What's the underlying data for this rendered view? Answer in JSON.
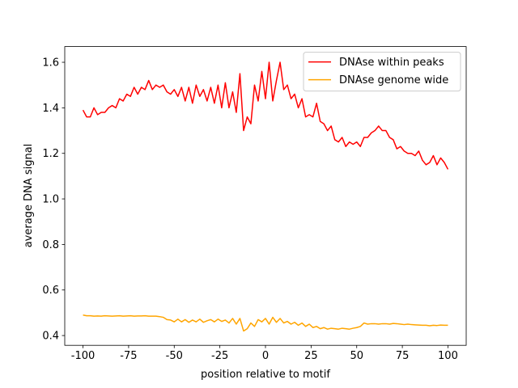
{
  "chart_data": {
    "type": "line",
    "xlabel": "position relative to motif",
    "ylabel": "average DNA signal",
    "x": [
      -100,
      -98,
      -96,
      -94,
      -92,
      -90,
      -88,
      -86,
      -84,
      -82,
      -80,
      -78,
      -76,
      -74,
      -72,
      -70,
      -68,
      -66,
      -64,
      -62,
      -60,
      -58,
      -56,
      -54,
      -52,
      -50,
      -48,
      -46,
      -44,
      -42,
      -40,
      -38,
      -36,
      -34,
      -32,
      -30,
      -28,
      -26,
      -24,
      -22,
      -20,
      -18,
      -16,
      -14,
      -12,
      -10,
      -8,
      -6,
      -4,
      -2,
      0,
      2,
      4,
      6,
      8,
      10,
      12,
      14,
      16,
      18,
      20,
      22,
      24,
      26,
      28,
      30,
      32,
      34,
      36,
      38,
      40,
      42,
      44,
      46,
      48,
      50,
      52,
      54,
      56,
      58,
      60,
      62,
      64,
      66,
      68,
      70,
      72,
      74,
      76,
      78,
      80,
      82,
      84,
      86,
      88,
      90,
      92,
      94,
      96,
      98,
      100
    ],
    "series": [
      {
        "name": "DNAse within peaks",
        "color": "#ff0000",
        "values": [
          1.39,
          1.36,
          1.36,
          1.4,
          1.37,
          1.38,
          1.38,
          1.4,
          1.41,
          1.4,
          1.44,
          1.43,
          1.46,
          1.45,
          1.49,
          1.46,
          1.49,
          1.48,
          1.52,
          1.48,
          1.5,
          1.49,
          1.5,
          1.47,
          1.46,
          1.48,
          1.45,
          1.49,
          1.43,
          1.49,
          1.42,
          1.5,
          1.45,
          1.48,
          1.43,
          1.49,
          1.42,
          1.5,
          1.4,
          1.51,
          1.4,
          1.47,
          1.38,
          1.55,
          1.3,
          1.36,
          1.33,
          1.5,
          1.43,
          1.56,
          1.44,
          1.6,
          1.43,
          1.52,
          1.6,
          1.48,
          1.5,
          1.44,
          1.46,
          1.4,
          1.44,
          1.36,
          1.37,
          1.36,
          1.42,
          1.34,
          1.33,
          1.3,
          1.32,
          1.26,
          1.25,
          1.27,
          1.23,
          1.25,
          1.24,
          1.25,
          1.23,
          1.27,
          1.27,
          1.29,
          1.3,
          1.32,
          1.3,
          1.3,
          1.27,
          1.26,
          1.22,
          1.23,
          1.21,
          1.2,
          1.2,
          1.19,
          1.21,
          1.17,
          1.15,
          1.16,
          1.19,
          1.15,
          1.18,
          1.16,
          1.13
        ]
      },
      {
        "name": "DNAse genome wide",
        "color": "#ffa500",
        "values": [
          0.49,
          0.487,
          0.487,
          0.485,
          0.486,
          0.485,
          0.487,
          0.486,
          0.485,
          0.486,
          0.487,
          0.485,
          0.486,
          0.487,
          0.485,
          0.486,
          0.486,
          0.487,
          0.485,
          0.485,
          0.485,
          0.483,
          0.48,
          0.47,
          0.468,
          0.46,
          0.472,
          0.46,
          0.47,
          0.458,
          0.468,
          0.46,
          0.472,
          0.458,
          0.465,
          0.47,
          0.46,
          0.472,
          0.462,
          0.468,
          0.455,
          0.475,
          0.45,
          0.475,
          0.42,
          0.43,
          0.455,
          0.44,
          0.47,
          0.46,
          0.475,
          0.45,
          0.48,
          0.458,
          0.475,
          0.455,
          0.462,
          0.45,
          0.458,
          0.445,
          0.455,
          0.44,
          0.45,
          0.435,
          0.44,
          0.43,
          0.435,
          0.428,
          0.432,
          0.43,
          0.428,
          0.432,
          0.43,
          0.428,
          0.432,
          0.435,
          0.44,
          0.455,
          0.45,
          0.452,
          0.452,
          0.45,
          0.452,
          0.452,
          0.45,
          0.453,
          0.452,
          0.45,
          0.448,
          0.45,
          0.448,
          0.447,
          0.446,
          0.445,
          0.445,
          0.443,
          0.445,
          0.444,
          0.446,
          0.445,
          0.445
        ]
      }
    ],
    "xlim": [
      -110,
      110
    ],
    "xticks": [
      -100,
      -75,
      -50,
      -25,
      0,
      25,
      50,
      75,
      100
    ],
    "ylim": [
      0.357,
      1.669
    ],
    "yticks": [
      0.4,
      0.6,
      0.8,
      {
        "value": 1.0,
        "label": "1.0"
      },
      1.2,
      1.4,
      1.6
    ],
    "legend": "upper right"
  }
}
